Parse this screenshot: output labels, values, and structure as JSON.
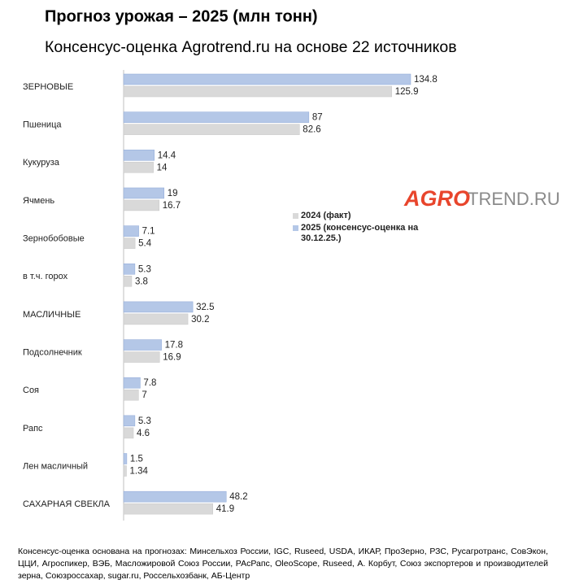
{
  "chart_data": {
    "type": "bar",
    "orientation": "horizontal",
    "title": "Прогноз урожая – 2025 (млн тонн)",
    "subtitle": "Консенсус-оценка Agrotrend.ru на основе 22 источников",
    "categories": [
      "ЗЕРНОВЫЕ",
      "Пшеница",
      "Кукуруза",
      "Ячмень",
      "Зернобобовые",
      "в т.ч. горох",
      "МАСЛИЧНЫЕ",
      "Подсолнечник",
      "Соя",
      "Рапс",
      "Лен масличный",
      "САХАРНАЯ СВЕКЛА"
    ],
    "series": [
      {
        "name": "2024 (факт)",
        "color": "#d9d9d9",
        "values": [
          125.9,
          82.6,
          14,
          16.7,
          5.4,
          3.8,
          30.2,
          16.9,
          7,
          4.6,
          1.34,
          41.9
        ]
      },
      {
        "name": "2025 (консенсус-оценка на 30.12.25.)",
        "color": "#b4c7e7",
        "values": [
          134.8,
          87,
          14.4,
          19,
          7.1,
          5.3,
          32.5,
          17.8,
          7.8,
          5.3,
          1.5,
          48.2
        ]
      }
    ],
    "legend": "right",
    "logo": {
      "accent": "AGRO",
      "rest": "TREND.RU"
    },
    "note": "Консенсус-оценка основана на прогнозах: Минсельхоз России, IGC, Ruseed, USDA, ИКАР, ПроЗерно, РЗС, Русагротранс, СовЭкон, ЦЦИ, Агроспикер, ВЭБ, Масложировой Союз России, РАсРапс, OleoScope, Ruseed, А. Корбут, Союз экспортеров и производителей зерна, Союзроссахар, sugar.ru, Россельхозбанк, АБ-Центр"
  }
}
